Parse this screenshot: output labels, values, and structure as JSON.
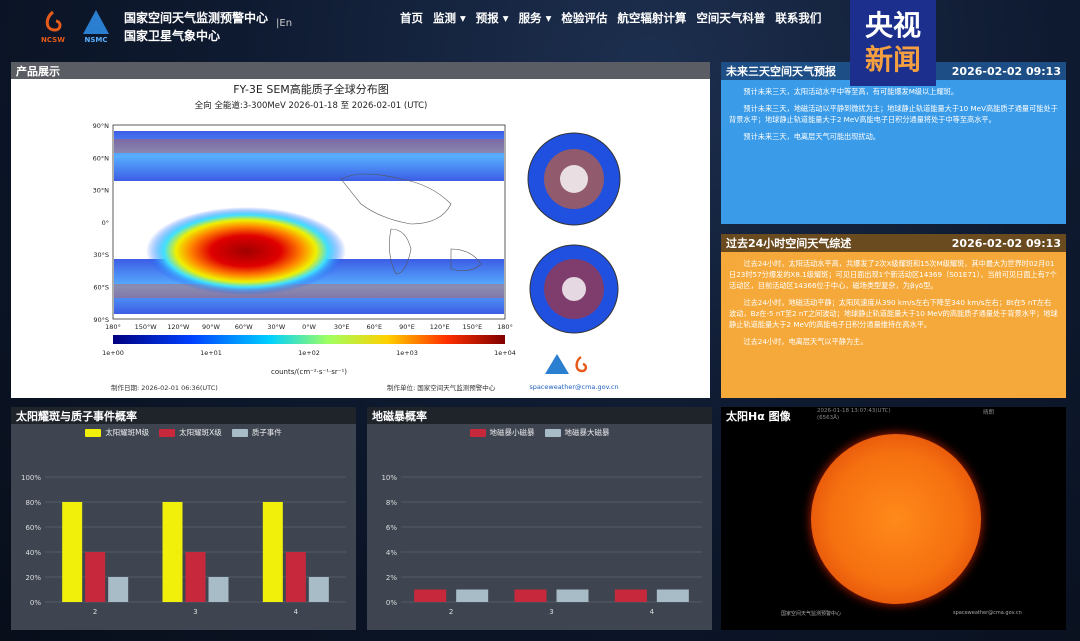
{
  "header": {
    "org1": "国家空间天气监测预警中心",
    "org2": "国家卫星气象中心",
    "lang": "En",
    "logo1": "NCSW",
    "logo2": "NSMC",
    "nav": [
      "首页",
      "监测 ▾",
      "预报 ▾",
      "服务 ▾",
      "检验评估",
      "航空辐射计算",
      "空间天气科普",
      "联系我们"
    ]
  },
  "watermark": {
    "line1": "央视",
    "line2": "新闻"
  },
  "product": {
    "title": "产品展示",
    "map_title": "FY-3E SEM高能质子全球分布图",
    "map_subtitle": "全向   全能道:3-300MeV    2026-01-18 至 2026-02-01 (UTC)",
    "lat_ticks": [
      "90°N",
      "60°N",
      "30°N",
      "0°",
      "30°S",
      "60°S",
      "90°S"
    ],
    "lon_ticks": [
      "180°",
      "150°W",
      "120°W",
      "90°W",
      "60°W",
      "30°W",
      "0°W",
      "30°E",
      "60°E",
      "90°E",
      "120°E",
      "150°E",
      "180°"
    ],
    "colorbar_ticks": [
      "1e+00",
      "1e+01",
      "1e+02",
      "1e+03",
      "1e+04"
    ],
    "colorbar_unit": "counts/(cm⁻²·s⁻¹·sr⁻¹)",
    "made_date": "制作日期:   2026-02-01 06:36(UTC)",
    "made_by": "制作单位:   国家空间天气监测预警中心",
    "email": "spaceweather@cma.gov.cn"
  },
  "forecast": {
    "title": "未来三天空间天气预报",
    "time": "2026-02-02 09:13",
    "paragraphs": [
      "预计未来三天，太阳活动水平中等至高，有可能爆发M级以上耀斑。",
      "预计未来三天，地磁活动以平静到微扰为主；地球静止轨道能量大于10 MeV高能质子通量可能处于背景水平；地球静止轨道能量大于2 MeV高能电子日积分通量将处于中等至高水平。",
      "预计未来三天，电离层天气可能出现扰动。"
    ]
  },
  "summary": {
    "title": "过去24小时空间天气综述",
    "time": "2026-02-02 09:13",
    "paragraphs": [
      "过去24小时，太阳活动水平高，共爆发了2次X级耀斑和15次M级耀斑，其中最大为世界时02月01日23时57分爆发的X8.1级耀斑；可见日面出现1个新活动区14369（S01E71），当前可见日面上有7个活动区，目前活动区14366位于中心，磁场类型复杂，为βγδ型。",
      "过去24小时，地磁活动平静；太阳风速度从390 km/s左右下降至340 km/s左右；Bt在5 nT左右波动，Bz在-5 nT至2 nT之间波动；地球静止轨道能量大于10 MeV的高能质子通量处于背景水平；地球静止轨道能量大于2 MeV的高能电子日积分通量维持在高水平。",
      "过去24小时，电离层天气以平静为主。"
    ]
  },
  "flare_chart": {
    "title": "太阳耀斑与质子事件概率"
  },
  "geomag_chart": {
    "title": "地磁暴概率"
  },
  "sun": {
    "title": "太阳Hα 图像",
    "timestamp": "2026-01-18 13:07:43(UTC)",
    "sub": "(6563Å)",
    "label_right": "晴朗",
    "footer": "国家空间天气监测预警中心",
    "footer_email": "spaceweather@cma.gov.cn"
  },
  "chart_data": [
    {
      "type": "bar",
      "title": "太阳耀斑与质子事件概率",
      "categories": [
        "2",
        "3",
        "4"
      ],
      "ylim": [
        0,
        100
      ],
      "yticks": [
        "0%",
        "20%",
        "40%",
        "60%",
        "80%",
        "100%"
      ],
      "grid": true,
      "legend": "top",
      "series": [
        {
          "name": "太阳耀斑M级",
          "color": "#f0f00a",
          "values": [
            80,
            80,
            80
          ]
        },
        {
          "name": "太阳耀斑X级",
          "color": "#c8283c",
          "values": [
            40,
            40,
            40
          ]
        },
        {
          "name": "质子事件",
          "color": "#a8bcc8",
          "values": [
            20,
            20,
            20
          ]
        }
      ]
    },
    {
      "type": "bar",
      "title": "地磁暴概率",
      "categories": [
        "2",
        "3",
        "4"
      ],
      "ylim": [
        0,
        10
      ],
      "yticks": [
        "0%",
        "2%",
        "4%",
        "6%",
        "8%",
        "10%"
      ],
      "grid": true,
      "legend": "top",
      "series": [
        {
          "name": "地磁暴小磁暴",
          "color": "#c8283c",
          "values": [
            1,
            1,
            1
          ]
        },
        {
          "name": "地磁暴大磁暴",
          "color": "#a8bcc8",
          "values": [
            1,
            1,
            1
          ]
        }
      ]
    }
  ]
}
